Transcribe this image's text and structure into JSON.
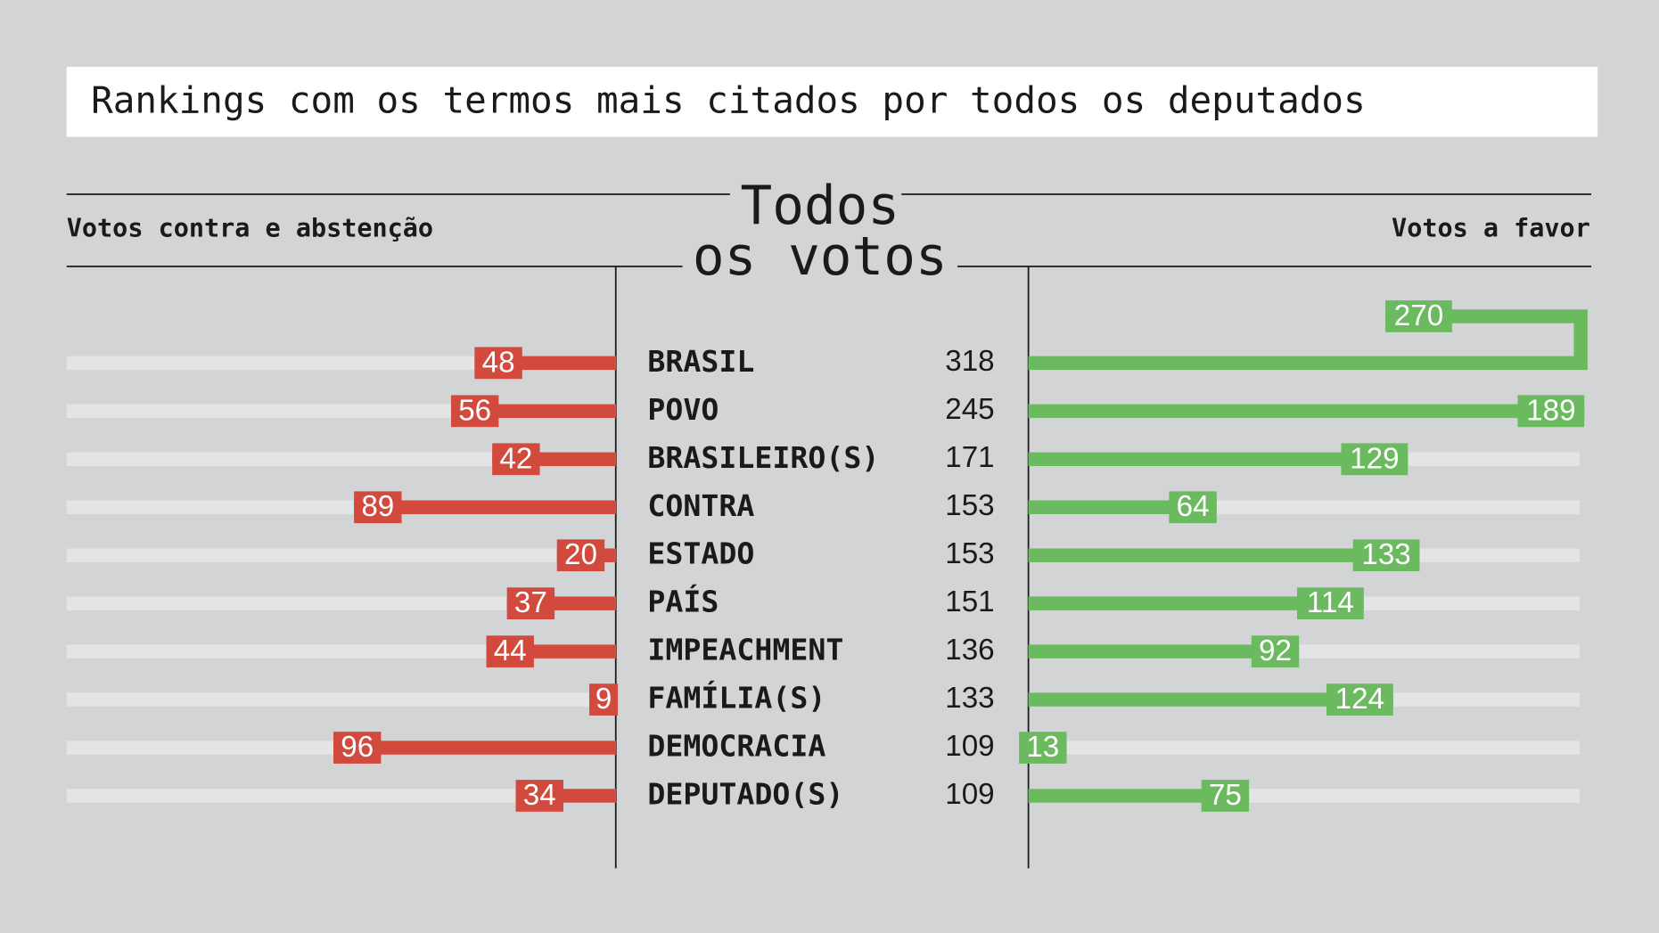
{
  "chart_data": {
    "type": "diverging-bar",
    "title": "Rankings com os termos mais citados por todos os deputados",
    "center_title": [
      "Todos",
      "os votos"
    ],
    "categories": [
      "BRASIL",
      "POVO",
      "BRASILEIRO(S)",
      "CONTRA",
      "ESTADO",
      "PAÍS",
      "IMPEACHMENT",
      "FAMÍLIA(S)",
      "DEMOCRACIA",
      "DEPUTADO(S)"
    ],
    "totals": [
      318,
      245,
      171,
      153,
      153,
      151,
      136,
      133,
      109,
      109
    ],
    "series": [
      {
        "name": "Votos contra e abstenção",
        "color": "#d24a3e",
        "values": [
          48,
          56,
          42,
          89,
          20,
          37,
          44,
          9,
          96,
          34
        ]
      },
      {
        "name": "Votos a favor",
        "color": "#6cba60",
        "values": [
          270,
          189,
          129,
          64,
          133,
          114,
          92,
          124,
          13,
          75
        ]
      }
    ]
  }
}
